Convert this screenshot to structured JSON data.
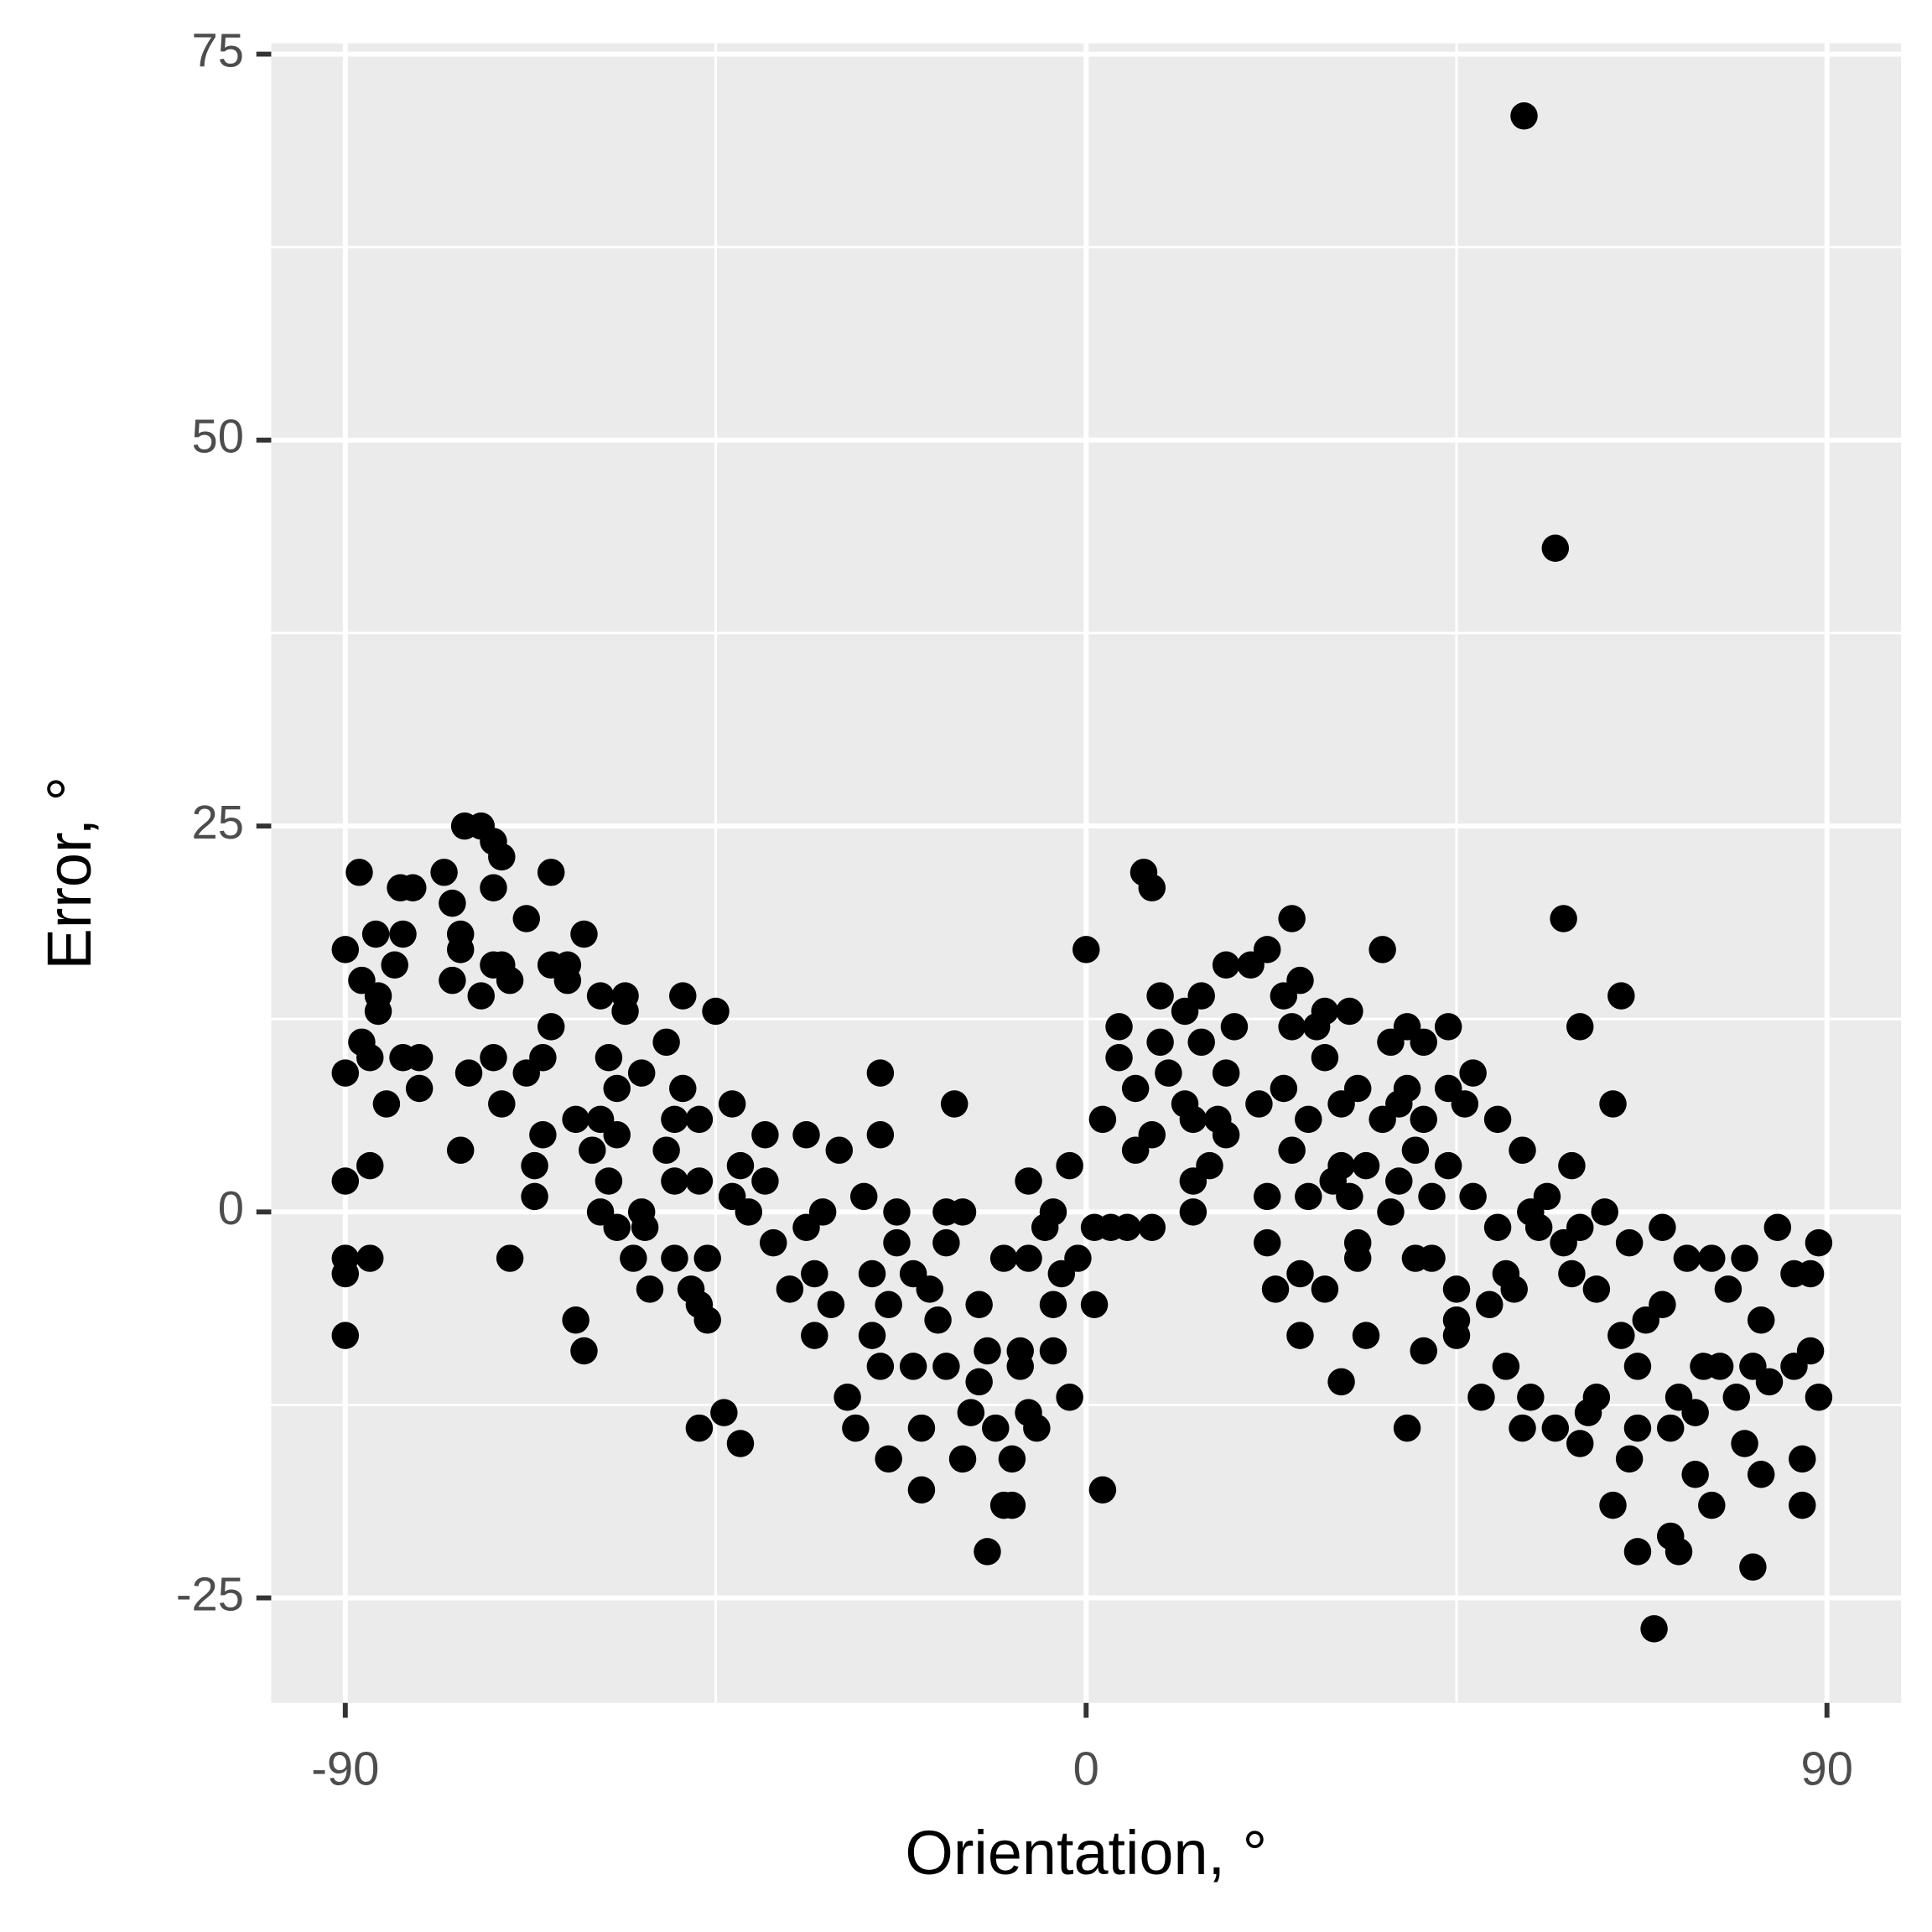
{
  "chart_data": {
    "type": "scatter",
    "x_label": "Orientation, °",
    "y_label": "Error, °",
    "xlim": [
      -99,
      99
    ],
    "ylim": [
      -31.8,
      75.7
    ],
    "xticks": [
      -90,
      0,
      90
    ],
    "yticks": [
      -25,
      0,
      25,
      50,
      75
    ],
    "grid": true,
    "minor_grid": true,
    "color": "#000000",
    "x": [
      -90,
      -90,
      -90,
      -90,
      -90,
      -90,
      -88.3,
      -88,
      -88,
      -87,
      -87,
      -87,
      -86.3,
      -86,
      -86,
      -85,
      -84,
      -83.3,
      -81.8,
      -83,
      -83,
      -81,
      -81,
      -78,
      -77,
      -77,
      -76,
      -76,
      -75.5,
      -73.5,
      -76,
      -75,
      -73.5,
      -72,
      -72,
      -71,
      -72,
      -72,
      -71,
      -70,
      -70,
      -71,
      -68,
      -68,
      -67,
      -67,
      -66,
      -66,
      -65,
      -65,
      -65,
      -63,
      -63,
      -62,
      -62,
      -61,
      -61,
      -60,
      -59,
      -59,
      -59,
      -58,
      -58,
      -57,
      -57,
      -56,
      -56,
      -57,
      -55,
      -54,
      -54,
      -53.6,
      -53,
      -51,
      -51,
      -50,
      -50,
      -50,
      -49,
      -49,
      -48,
      -47,
      -47,
      -47,
      -47,
      -46,
      -46,
      -45,
      -44,
      -43,
      -43,
      -42,
      -42,
      -41,
      -39,
      -39,
      -38,
      -36,
      -34,
      -34,
      -33,
      -33,
      -32,
      -31,
      -30,
      -29,
      -28,
      -27,
      -26,
      -26,
      -25,
      -25,
      -25,
      -24,
      -24,
      -23,
      -23,
      -21,
      -21,
      -20,
      -20,
      -19,
      -18,
      -17,
      -17,
      -16,
      -17,
      -15,
      -15,
      -14,
      -13,
      -13,
      -12,
      -12,
      -11,
      -10,
      -10,
      -9,
      -9,
      -8,
      -8,
      -7,
      -7,
      -7,
      -6,
      -5,
      -4,
      -4,
      -4,
      -3,
      -2,
      -2,
      -1,
      0,
      1,
      1,
      2,
      2,
      3,
      4,
      4,
      5,
      6,
      6,
      7,
      8,
      8,
      8,
      9,
      9,
      10,
      12,
      12,
      13,
      13,
      13,
      14,
      14,
      15,
      16,
      17,
      17,
      18,
      17,
      20,
      21,
      22,
      22,
      22,
      23,
      24,
      24,
      25,
      25,
      25,
      26,
      26,
      26,
      27,
      27,
      28,
      29,
      29,
      29,
      30,
      31,
      31,
      31,
      32,
      32,
      33,
      33,
      33,
      34,
      34,
      36,
      36,
      37,
      37,
      38,
      38,
      39,
      39,
      39,
      40,
      40,
      41,
      41,
      41,
      42,
      42,
      44,
      44,
      44,
      45,
      45,
      45,
      46,
      47,
      47,
      48,
      49,
      50,
      50,
      51,
      51,
      52,
      53,
      53,
      53.2,
      54,
      54,
      55,
      56,
      57,
      57,
      58,
      58,
      59,
      59,
      60,
      60,
      60,
      61,
      62,
      62,
      63,
      64,
      64,
      65,
      65,
      66,
      66,
      67,
      67,
      67,
      68,
      69,
      70,
      70,
      71,
      71,
      72,
      72,
      73,
      74,
      74,
      75,
      76,
      76,
      77,
      78,
      79,
      80,
      80,
      81,
      81,
      82,
      82,
      83,
      84,
      86,
      86,
      87,
      87,
      88,
      88,
      89,
      89
    ],
    "values": [
      17,
      2,
      -3,
      -4,
      -8,
      9,
      22,
      11,
      15,
      3,
      -3,
      10,
      18,
      14,
      13,
      7,
      16,
      21,
      21,
      18,
      10,
      10,
      8,
      22,
      20,
      15,
      17,
      18,
      25,
      25,
      4,
      9,
      14,
      21,
      24,
      23,
      10,
      16,
      7,
      15,
      -3,
      16,
      19,
      9,
      3,
      1,
      5,
      10,
      12,
      22,
      16,
      15,
      16,
      6,
      -7,
      -9,
      18,
      4,
      14,
      6,
      0,
      10,
      2,
      8,
      -1,
      14,
      13,
      5,
      -3,
      9,
      0,
      -1,
      -5,
      11,
      4,
      6,
      -3,
      2,
      14,
      8,
      -5,
      -6,
      6,
      2,
      -14,
      -7,
      -3,
      13,
      -13,
      7,
      1,
      -15,
      3,
      0,
      2,
      5,
      -2,
      -5,
      -1,
      5,
      -4,
      -8,
      0,
      -6,
      4,
      -12,
      -14,
      1,
      -8,
      -4,
      9,
      5,
      -10,
      -16,
      -6,
      -2,
      0,
      -10,
      -4,
      -18,
      -14,
      -5,
      -7,
      -10,
      -2,
      7,
      0,
      -16,
      0,
      -13,
      -6,
      -11,
      -22,
      -9,
      -14,
      -19,
      -3,
      -19,
      -16,
      -9,
      -10,
      -13,
      2,
      -3,
      -14,
      -1,
      -9,
      -6,
      0,
      -4,
      -12,
      3,
      -3,
      17,
      -6,
      -1,
      6,
      -18,
      -1,
      12,
      10,
      -1,
      8,
      4,
      22,
      21,
      5,
      -1,
      14,
      11,
      9,
      13,
      7,
      6,
      0,
      2,
      11,
      14,
      3,
      6,
      16,
      9,
      12,
      5,
      16,
      7,
      17,
      1,
      -2,
      -5,
      14,
      8,
      19,
      12,
      4,
      15,
      -8,
      -4,
      6,
      1,
      12,
      10,
      13,
      -5,
      2,
      7,
      3,
      -11,
      1,
      13,
      -3,
      -2,
      8,
      -8,
      3,
      17,
      6,
      0,
      11,
      7,
      2,
      -14,
      12,
      8,
      -3,
      4,
      -9,
      6,
      11,
      1,
      -3,
      12,
      8,
      3,
      -7,
      -8,
      -5,
      7,
      9,
      1,
      -12,
      -6,
      6,
      -1,
      -10,
      -4,
      -5,
      4,
      -14,
      71,
      -12,
      0,
      -1,
      1,
      43,
      -14,
      19,
      -2,
      3,
      -4,
      12,
      -15,
      -1,
      -13,
      -5,
      -12,
      0,
      7,
      -19,
      14,
      -8,
      -2,
      -16,
      -10,
      -22,
      -14,
      -7,
      -27,
      -1,
      -6,
      -21,
      -14,
      -22,
      -12,
      -3,
      -17,
      -13,
      -10,
      -19,
      -3,
      -10,
      -5,
      -12,
      -15,
      -3,
      -23,
      -10,
      -17,
      -7,
      -11,
      -1,
      -10,
      -4,
      -19,
      -16,
      -9,
      -4,
      -12,
      -2
    ]
  }
}
